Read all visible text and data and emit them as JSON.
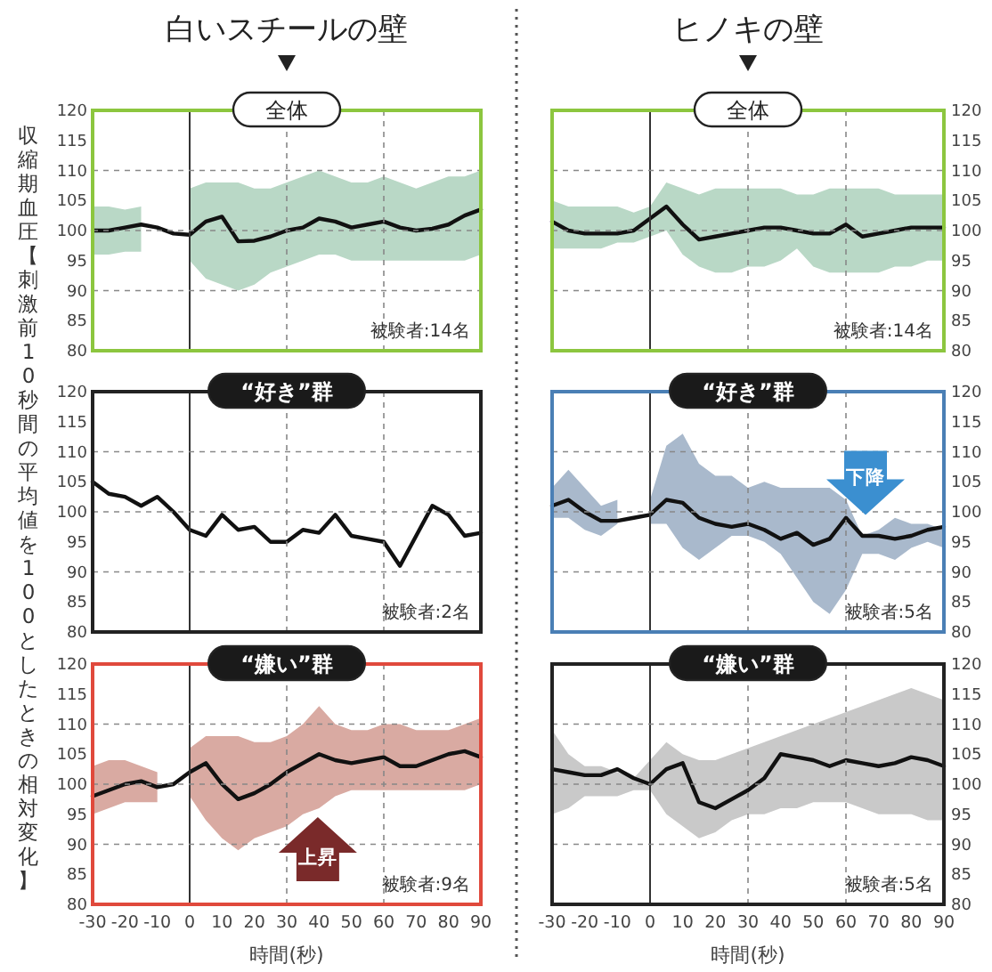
{
  "chart_data": [
    {
      "type": "line",
      "title": "白いスチールの壁",
      "subtitle": "全体",
      "x": [
        -30,
        -25,
        -20,
        -15,
        -10,
        -5,
        0,
        5,
        10,
        15,
        20,
        25,
        30,
        35,
        40,
        45,
        50,
        55,
        60,
        65,
        70,
        75,
        80,
        85,
        90
      ],
      "xlim": [
        -30,
        90
      ],
      "ylim": [
        80,
        120
      ],
      "yticks": [
        80,
        85,
        90,
        95,
        100,
        105,
        110,
        115,
        120
      ],
      "tick_labels": "y",
      "ref_lines": [
        {
          "axis": "x",
          "value": 0,
          "line_style": "solid"
        },
        {
          "axis": "x",
          "value": 30,
          "line_style": "dashed"
        },
        {
          "axis": "x",
          "value": 60,
          "line_style": "dashed"
        },
        {
          "axis": "y",
          "value": 90,
          "line_style": "dashed"
        },
        {
          "axis": "y",
          "value": 100,
          "line_style": "dashed"
        },
        {
          "axis": "y",
          "value": 110,
          "line_style": "dashed"
        }
      ],
      "annotations": [
        "被験者:14名"
      ],
      "series": [
        {
          "color": "#111111",
          "values": [
            100,
            100,
            100.5,
            101,
            100.5,
            99.5,
            99.3,
            101.5,
            102.3,
            98.2,
            98.3,
            99,
            100,
            100.5,
            102,
            101.5,
            100.5,
            101,
            101.5,
            100.5,
            100,
            100.3,
            101,
            102.5,
            103.5
          ],
          "lower": [
            96,
            96,
            96.5,
            96.5,
            null,
            null,
            95,
            92,
            91,
            90,
            91,
            93,
            94,
            95,
            96,
            96,
            95,
            95,
            95,
            95,
            95,
            95,
            95,
            95,
            96
          ],
          "upper": [
            104,
            104,
            103.5,
            104,
            null,
            null,
            107,
            108,
            108,
            108,
            107,
            107,
            108,
            109,
            110,
            109,
            108,
            108,
            109,
            108,
            107,
            108,
            109,
            109,
            110
          ]
        }
      ]
    },
    {
      "type": "line",
      "title": "ヒノキの壁",
      "subtitle": "全体",
      "x": [
        -30,
        -25,
        -20,
        -15,
        -10,
        -5,
        0,
        5,
        10,
        15,
        20,
        25,
        30,
        35,
        40,
        45,
        50,
        55,
        60,
        65,
        70,
        75,
        80,
        85,
        90
      ],
      "xlim": [
        -30,
        90
      ],
      "ylim": [
        80,
        120
      ],
      "yticks": [
        80,
        85,
        90,
        95,
        100,
        105,
        110,
        115,
        120
      ],
      "tick_labels": "y",
      "ref_lines": [
        {
          "axis": "x",
          "value": 0,
          "line_style": "solid"
        },
        {
          "axis": "x",
          "value": 30,
          "line_style": "dashed"
        },
        {
          "axis": "x",
          "value": 60,
          "line_style": "dashed"
        },
        {
          "axis": "y",
          "value": 90,
          "line_style": "dashed"
        },
        {
          "axis": "y",
          "value": 100,
          "line_style": "dashed"
        },
        {
          "axis": "y",
          "value": 110,
          "line_style": "dashed"
        }
      ],
      "annotations": [
        "被験者:14名"
      ],
      "series": [
        {
          "color": "#111111",
          "values": [
            101.5,
            100,
            99.5,
            99.5,
            99.5,
            100,
            102,
            104,
            101,
            98.5,
            99,
            99.5,
            100,
            100.5,
            100.5,
            100,
            99.5,
            99.5,
            101,
            99,
            99.5,
            100,
            100.5,
            100.5,
            100.5
          ],
          "lower": [
            97,
            97,
            97,
            97,
            98,
            98,
            99,
            100,
            96,
            94,
            93,
            93,
            94,
            94,
            95,
            97,
            94,
            93,
            93,
            93,
            93,
            94,
            94,
            95,
            95
          ],
          "upper": [
            105,
            104,
            104,
            104,
            104,
            103,
            104,
            108,
            107,
            106,
            107,
            107,
            107,
            107,
            107,
            106,
            106,
            107,
            107,
            107,
            107,
            106,
            106,
            106,
            106
          ]
        }
      ]
    },
    {
      "type": "line",
      "subtitle": "“好き”群",
      "ylabel": "収縮期血圧【刺激前10秒間の平均値を100としたときの相対変化】",
      "x": [
        -30,
        -25,
        -20,
        -15,
        -10,
        -5,
        0,
        5,
        10,
        15,
        20,
        25,
        30,
        35,
        40,
        45,
        50,
        55,
        60,
        65,
        70,
        75,
        80,
        85,
        90
      ],
      "xlim": [
        -30,
        90
      ],
      "ylim": [
        80,
        120
      ],
      "yticks": [
        80,
        85,
        90,
        95,
        100,
        105,
        110,
        115,
        120
      ],
      "tick_labels": "y",
      "ref_lines": [
        {
          "axis": "x",
          "value": 0,
          "line_style": "solid"
        },
        {
          "axis": "x",
          "value": 30,
          "line_style": "dashed"
        },
        {
          "axis": "x",
          "value": 60,
          "line_style": "dashed"
        },
        {
          "axis": "y",
          "value": 90,
          "line_style": "dashed"
        },
        {
          "axis": "y",
          "value": 100,
          "line_style": "dashed"
        },
        {
          "axis": "y",
          "value": 110,
          "line_style": "dashed"
        }
      ],
      "annotations": [
        "被験者:2名"
      ],
      "series": [
        {
          "color": "#111111",
          "values": [
            105,
            103,
            102.5,
            101,
            102.5,
            100,
            97,
            96,
            99.5,
            97,
            97.5,
            95,
            95,
            97,
            96.5,
            99.5,
            96,
            95.5,
            95,
            91,
            96,
            101,
            99.5,
            96,
            96.5
          ]
        }
      ]
    },
    {
      "type": "line",
      "subtitle": "“好き”群",
      "x": [
        -30,
        -25,
        -20,
        -15,
        -10,
        -5,
        0,
        5,
        10,
        15,
        20,
        25,
        30,
        35,
        40,
        45,
        50,
        55,
        60,
        65,
        70,
        75,
        80,
        85,
        90
      ],
      "xlim": [
        -30,
        90
      ],
      "ylim": [
        80,
        120
      ],
      "yticks": [
        80,
        85,
        90,
        95,
        100,
        105,
        110,
        115,
        120
      ],
      "tick_labels": "y",
      "ref_lines": [
        {
          "axis": "x",
          "value": 0,
          "line_style": "solid"
        },
        {
          "axis": "x",
          "value": 30,
          "line_style": "dashed"
        },
        {
          "axis": "x",
          "value": 60,
          "line_style": "dashed"
        },
        {
          "axis": "y",
          "value": 90,
          "line_style": "dashed"
        },
        {
          "axis": "y",
          "value": 100,
          "line_style": "dashed"
        },
        {
          "axis": "y",
          "value": 110,
          "line_style": "dashed"
        }
      ],
      "annotations": [
        "被験者:5名",
        "下降"
      ],
      "series": [
        {
          "color": "#111111",
          "values": [
            101,
            102,
            100,
            98.5,
            98.5,
            99,
            99.5,
            102,
            101.5,
            99,
            98,
            97.5,
            98,
            97,
            95.5,
            96.5,
            94.5,
            95.5,
            99,
            96,
            96,
            95.5,
            96,
            97,
            97.5
          ],
          "lower": [
            99,
            99,
            97,
            96,
            98,
            null,
            98,
            98,
            94,
            92,
            94,
            96,
            96,
            95,
            93,
            89,
            85,
            83,
            87,
            93,
            93,
            92,
            94,
            95,
            94
          ],
          "upper": [
            104,
            107,
            104,
            101,
            102,
            null,
            102,
            111,
            113,
            108,
            106,
            106,
            104,
            105,
            104,
            104,
            104,
            104,
            102,
            96,
            97,
            99,
            98,
            98,
            97
          ]
        }
      ]
    },
    {
      "type": "line",
      "subtitle": "“嫌い”群",
      "xlabel": "時間(秒)",
      "x": [
        -30,
        -25,
        -20,
        -15,
        -10,
        -5,
        0,
        5,
        10,
        15,
        20,
        25,
        30,
        35,
        40,
        45,
        50,
        55,
        60,
        65,
        70,
        75,
        80,
        85,
        90
      ],
      "xlim": [
        -30,
        90
      ],
      "ylim": [
        80,
        120
      ],
      "yticks": [
        80,
        85,
        90,
        95,
        100,
        105,
        110,
        115,
        120
      ],
      "xticks": [
        -30,
        -20,
        -10,
        0,
        10,
        20,
        30,
        40,
        50,
        60,
        70,
        80,
        90
      ],
      "ref_lines": [
        {
          "axis": "x",
          "value": 0,
          "line_style": "solid"
        },
        {
          "axis": "x",
          "value": 30,
          "line_style": "dashed"
        },
        {
          "axis": "x",
          "value": 60,
          "line_style": "dashed"
        },
        {
          "axis": "y",
          "value": 90,
          "line_style": "dashed"
        },
        {
          "axis": "y",
          "value": 100,
          "line_style": "dashed"
        },
        {
          "axis": "y",
          "value": 110,
          "line_style": "dashed"
        }
      ],
      "annotations": [
        "被験者:9名",
        "上昇"
      ],
      "series": [
        {
          "color": "#111111",
          "values": [
            98,
            99,
            100,
            100.5,
            99.5,
            100,
            102,
            103.5,
            100,
            97.5,
            98.5,
            100,
            102,
            103.5,
            105,
            104,
            103.5,
            104,
            104.5,
            103,
            103,
            104,
            105,
            105.5,
            104.5
          ],
          "lower": [
            95,
            96,
            97,
            97,
            97,
            null,
            98,
            94,
            91,
            89,
            91,
            92,
            93,
            95,
            96,
            98,
            99,
            99,
            99,
            99,
            99,
            99,
            99,
            99,
            100
          ],
          "upper": [
            103,
            104,
            104,
            103,
            102,
            null,
            106,
            108,
            108,
            108,
            107,
            107,
            108,
            110,
            113,
            110,
            109,
            109,
            110,
            110,
            109,
            109,
            109,
            110,
            111
          ]
        }
      ]
    },
    {
      "type": "line",
      "subtitle": "“嫌い”群",
      "xlabel": "時間(秒)",
      "x": [
        -30,
        -25,
        -20,
        -15,
        -10,
        -5,
        0,
        5,
        10,
        15,
        20,
        25,
        30,
        35,
        40,
        45,
        50,
        55,
        60,
        65,
        70,
        75,
        80,
        85,
        90
      ],
      "xlim": [
        -30,
        90
      ],
      "ylim": [
        80,
        120
      ],
      "yticks": [
        80,
        85,
        90,
        95,
        100,
        105,
        110,
        115,
        120
      ],
      "xticks": [
        -30,
        -20,
        -10,
        0,
        10,
        20,
        30,
        40,
        50,
        60,
        70,
        80,
        90
      ],
      "ref_lines": [
        {
          "axis": "x",
          "value": 0,
          "line_style": "solid"
        },
        {
          "axis": "x",
          "value": 30,
          "line_style": "dashed"
        },
        {
          "axis": "x",
          "value": 60,
          "line_style": "dashed"
        },
        {
          "axis": "y",
          "value": 90,
          "line_style": "dashed"
        },
        {
          "axis": "y",
          "value": 100,
          "line_style": "dashed"
        },
        {
          "axis": "y",
          "value": 110,
          "line_style": "dashed"
        }
      ],
      "annotations": [
        "被験者:5名"
      ],
      "series": [
        {
          "color": "#111111",
          "values": [
            102.5,
            102,
            101.5,
            101.5,
            102.5,
            101,
            100,
            102.5,
            103.5,
            97,
            96,
            97.5,
            99,
            101,
            105,
            104.5,
            104,
            103,
            104,
            103.5,
            103,
            103.5,
            104.5,
            104,
            103
          ],
          "lower": [
            95,
            96,
            98,
            98,
            98,
            99,
            99,
            95,
            93,
            91,
            92,
            94,
            95,
            95,
            96,
            96,
            97,
            97,
            97,
            96,
            95,
            95,
            95,
            94,
            94
          ],
          "upper": [
            109,
            105,
            103,
            103,
            102,
            101,
            104,
            107,
            105,
            104,
            104,
            105,
            106,
            107,
            108,
            109,
            110,
            111,
            112,
            113,
            114,
            115,
            116,
            115,
            114
          ]
        }
      ]
    }
  ]
}
